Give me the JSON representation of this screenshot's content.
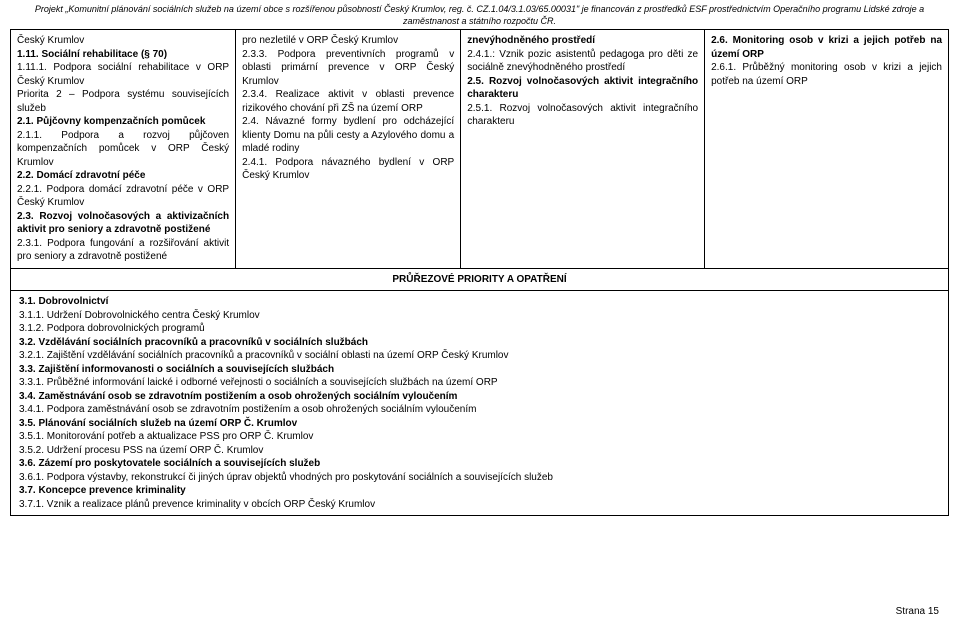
{
  "header": {
    "line1": "Projekt „Komunitní plánování sociálních služeb na území obce s rozšířenou působností Český Krumlov, reg. č. CZ.1.04/3.1.03/65.00031\" je financován z prostředků ESF prostřednictvím Operačního programu Lidské zdroje a",
    "line2": "zaměstnanost a státního rozpočtu ČR."
  },
  "col1": {
    "p1": "Český Krumlov",
    "p2": "1.11. Sociální rehabilitace (§ 70)",
    "p3": "1.11.1. Podpora sociální rehabilitace v ORP Český Krumlov",
    "p4": "Priorita 2 – Podpora systému souvisejících služeb",
    "p5": "2.1. Půjčovny kompenzačních pomůcek",
    "p6": "2.1.1. Podpora a rozvoj půjčoven kompenzačních pomůcek v ORP Český Krumlov",
    "p7": "2.2. Domácí zdravotní péče",
    "p8": "2.2.1. Podpora domácí zdravotní péče v ORP Český Krumlov",
    "p9": "2.3. Rozvoj volnočasových a aktivizačních aktivit pro seniory a zdravotně postižené",
    "p10": "2.3.1. Podpora fungování a rozšiřování aktivit pro seniory a zdravotně postižené"
  },
  "col2": {
    "p1": "pro nezletilé v ORP Český Krumlov",
    "p2": "2.3.3. Podpora preventivních programů v oblasti primární prevence v ORP Český Krumlov",
    "p3": "2.3.4. Realizace aktivit v oblasti prevence rizikového chování při ZŠ na území ORP",
    "p4": "2.4. Návazné formy bydlení pro odcházející klienty Domu na půli cesty a Azylového domu a mladé rodiny",
    "p5": "2.4.1. Podpora návazného bydlení v ORP Český Krumlov"
  },
  "col3": {
    "p1": "znevýhodněného prostředí",
    "p2": "2.4.1.: Vznik pozic asistentů pedagoga pro děti ze sociálně znevýhodněného prostředí",
    "p3a": "2.5. Rozvoj volnočasových aktivit integračního charakteru",
    "p4": "2.5.1. Rozvoj volnočasových aktivit integračního charakteru"
  },
  "col4": {
    "p1": "2.6. Monitoring osob v krizi a jejich potřeb na území ORP",
    "p2": "2.6.1. Průběžný monitoring osob v krizi a jejich potřeb na území ORP"
  },
  "section_title": "PRŮŘEZOVÉ PRIORITY A OPATŘENÍ",
  "bottom": {
    "l1": "3.1. Dobrovolnictví",
    "l2": "3.1.1. Udržení Dobrovolnického centra Český Krumlov",
    "l3": "3.1.2. Podpora dobrovolnických programů",
    "l4": "3.2. Vzdělávání sociálních pracovníků a pracovníků v sociálních službách",
    "l5": "3.2.1. Zajištění vzdělávání sociálních pracovníků a pracovníků v sociální oblasti na území ORP Český Krumlov",
    "l6": "3.3. Zajištění informovanosti o sociálních a souvisejících službách",
    "l7": "3.3.1. Průběžné informování laické i odborné veřejnosti o sociálních a souvisejících službách na území ORP",
    "l8": "3.4. Zaměstnávání osob se zdravotním postižením a osob ohrožených sociálním vyloučením",
    "l9": "3.4.1. Podpora zaměstnávání osob se zdravotním postižením a osob ohrožených sociálním vyloučením",
    "l10": "3.5.  Plánování sociálních služeb na území ORP Č. Krumlov",
    "l11": "3.5.1. Monitorování potřeb a aktualizace PSS pro ORP Č. Krumlov",
    "l12": "3.5.2. Udržení procesu PSS na území ORP Č. Krumlov",
    "l13": "3.6. Zázemí pro poskytovatele sociálních a souvisejících služeb",
    "l14": "3.6.1. Podpora výstavby, rekonstrukcí či jiných úprav objektů vhodných pro poskytování sociálních a souvisejících služeb",
    "l15": "3.7. Koncepce prevence kriminality",
    "l16": "3.7.1. Vznik a realizace plánů prevence kriminality v obcích ORP Český Krumlov"
  },
  "page_num": "Strana 15"
}
